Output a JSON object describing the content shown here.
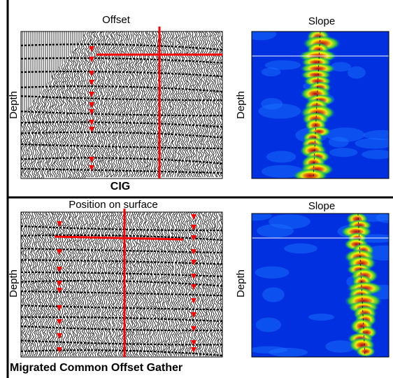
{
  "panels": [
    {
      "left_title": "Offset",
      "left_axis": "Depth",
      "right_title": "Slope",
      "right_axis": "Depth",
      "caption": "CIG"
    },
    {
      "left_title": "Position on surface",
      "left_axis": "Depth",
      "right_title": "Slope",
      "right_axis": "Depth",
      "caption": "Migrated Common Offset Gather"
    }
  ]
}
